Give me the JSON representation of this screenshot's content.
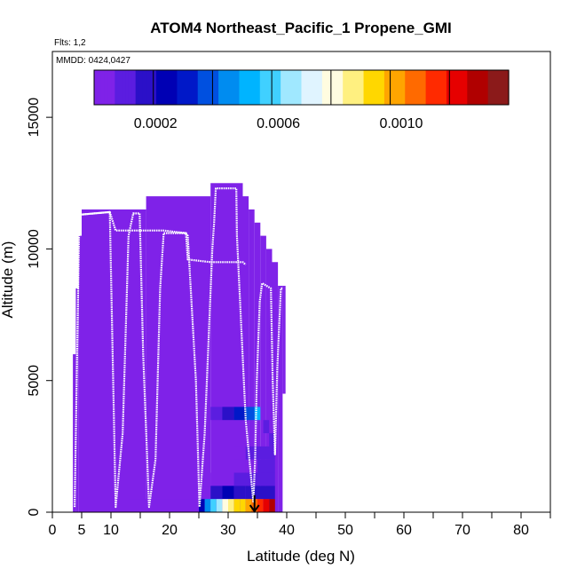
{
  "colors": {
    "background_fill": "#7f22e8",
    "track": "#ffffff",
    "arrow": "#000000",
    "palette": [
      "#7f22e8",
      "#5b1de0",
      "#2b10c8",
      "#0000b4",
      "#0018c8",
      "#0050e0",
      "#008cf0",
      "#00b4ff",
      "#40d0ff",
      "#a0e8ff",
      "#e0f4ff",
      "#fffce0",
      "#fff080",
      "#ffd700",
      "#ffa500",
      "#ff6a00",
      "#ff2a00",
      "#e60000",
      "#b00000",
      "#8b1a1a"
    ]
  },
  "chart_data": {
    "type": "heatmap",
    "title": "ATOM4 Northeast_Pacific_1 Propene_GMI",
    "flights_label": "Flts: 1,2",
    "dates_label": "MMDD: 0424,0427",
    "xlabel": "Latitude (deg N)",
    "ylabel": "Altitude (m)",
    "xlim": [
      0,
      85
    ],
    "ylim": [
      0,
      17500
    ],
    "x_ticks": [
      0,
      5,
      10,
      20,
      30,
      40,
      50,
      60,
      70,
      80
    ],
    "x_minor_ticks": [
      15,
      25,
      35,
      45,
      55,
      65,
      75,
      85
    ],
    "y_ticks": [
      0,
      5000,
      10000,
      15000
    ],
    "colorbar": {
      "min": 0.0,
      "max": 0.00135,
      "tick_values": [
        0.0002,
        0.0006,
        0.001
      ],
      "tick_labels": [
        "0.0002",
        "0.0006",
        "0.0010"
      ],
      "segments": 7
    },
    "columns": [
      {
        "x0": 3.5,
        "x1": 4.0,
        "y0": 0,
        "y1": 6000
      },
      {
        "x0": 4.0,
        "x1": 4.5,
        "y0": 0,
        "y1": 8500
      },
      {
        "x0": 4.5,
        "x1": 5.0,
        "y0": 0,
        "y1": 10500
      },
      {
        "x0": 5.0,
        "x1": 16.0,
        "y0": 0,
        "y1": 11500
      },
      {
        "x0": 16.0,
        "x1": 27.0,
        "y0": 0,
        "y1": 12000
      },
      {
        "x0": 27.0,
        "x1": 32.5,
        "y0": 0,
        "y1": 12500
      },
      {
        "x0": 32.5,
        "x1": 33.5,
        "y0": 0,
        "y1": 12000
      },
      {
        "x0": 33.5,
        "x1": 34.5,
        "y0": 0,
        "y1": 11500
      },
      {
        "x0": 34.5,
        "x1": 35.5,
        "y0": 0,
        "y1": 11000
      },
      {
        "x0": 35.5,
        "x1": 36.5,
        "y0": 0,
        "y1": 10500
      },
      {
        "x0": 36.5,
        "x1": 37.5,
        "y0": 0,
        "y1": 10000
      },
      {
        "x0": 37.5,
        "x1": 38.5,
        "y0": 0,
        "y1": 9500
      },
      {
        "x0": 38.5,
        "x1": 39.3,
        "y0": 0,
        "y1": 8600
      },
      {
        "x0": 39.3,
        "x1": 39.8,
        "y0": 4500,
        "y1": 8600
      }
    ],
    "high_value_cells": [
      {
        "x0": 27.0,
        "x1": 29.0,
        "y0": 3500,
        "y1": 4000,
        "value": 0.00012
      },
      {
        "x0": 29.0,
        "x1": 31.0,
        "y0": 3500,
        "y1": 4000,
        "value": 0.00018
      },
      {
        "x0": 31.0,
        "x1": 33.0,
        "y0": 3500,
        "y1": 4000,
        "value": 0.00028
      },
      {
        "x0": 33.0,
        "x1": 34.5,
        "y0": 3500,
        "y1": 4000,
        "value": 0.0004
      },
      {
        "x0": 34.5,
        "x1": 35.5,
        "y0": 3500,
        "y1": 4000,
        "value": 0.00048
      },
      {
        "x0": 36.0,
        "x1": 37.0,
        "y0": 3000,
        "y1": 3500,
        "value": 0.0001
      },
      {
        "x0": 37.0,
        "x1": 38.0,
        "y0": 2500,
        "y1": 3000,
        "value": 0.00012
      },
      {
        "x0": 31.0,
        "x1": 33.0,
        "y0": 2000,
        "y1": 2500,
        "value": 5e-05
      },
      {
        "x0": 33.0,
        "x1": 35.0,
        "y0": 2000,
        "y1": 2500,
        "value": 7e-05
      },
      {
        "x0": 35.0,
        "x1": 38.0,
        "y0": 2000,
        "y1": 2500,
        "value": 9e-05
      },
      {
        "x0": 31.0,
        "x1": 33.0,
        "y0": 1500,
        "y1": 2000,
        "value": 4e-05
      },
      {
        "x0": 33.0,
        "x1": 35.0,
        "y0": 1500,
        "y1": 2000,
        "value": 6e-05
      },
      {
        "x0": 35.0,
        "x1": 38.0,
        "y0": 1500,
        "y1": 2000,
        "value": 8e-05
      },
      {
        "x0": 25.0,
        "x1": 27.0,
        "y0": 1000,
        "y1": 1500,
        "value": 3e-05
      },
      {
        "x0": 27.0,
        "x1": 31.0,
        "y0": 1000,
        "y1": 1500,
        "value": 5e-05
      },
      {
        "x0": 31.0,
        "x1": 35.0,
        "y0": 1000,
        "y1": 1500,
        "value": 7e-05
      },
      {
        "x0": 35.0,
        "x1": 38.0,
        "y0": 1000,
        "y1": 1500,
        "value": 0.0001
      },
      {
        "x0": 25.0,
        "x1": 27.0,
        "y0": 500,
        "y1": 1000,
        "value": 5e-05
      },
      {
        "x0": 27.0,
        "x1": 29.0,
        "y0": 500,
        "y1": 1000,
        "value": 0.00018
      },
      {
        "x0": 29.0,
        "x1": 31.0,
        "y0": 500,
        "y1": 1000,
        "value": 0.00022
      },
      {
        "x0": 31.0,
        "x1": 33.0,
        "y0": 500,
        "y1": 1000,
        "value": 0.0002
      },
      {
        "x0": 33.0,
        "x1": 35.0,
        "y0": 500,
        "y1": 1000,
        "value": 0.00018
      },
      {
        "x0": 35.0,
        "x1": 38.0,
        "y0": 500,
        "y1": 1000,
        "value": 0.00016
      },
      {
        "x0": 13.0,
        "x1": 25.0,
        "y0": 0,
        "y1": 500,
        "value": 1e-05
      },
      {
        "x0": 25.0,
        "x1": 26.0,
        "y0": 0,
        "y1": 500,
        "value": 0.00026
      },
      {
        "x0": 26.0,
        "x1": 27.0,
        "y0": 0,
        "y1": 500,
        "value": 0.00045
      },
      {
        "x0": 27.0,
        "x1": 28.0,
        "y0": 0,
        "y1": 500,
        "value": 0.00058
      },
      {
        "x0": 28.0,
        "x1": 29.0,
        "y0": 0,
        "y1": 500,
        "value": 0.00066
      },
      {
        "x0": 29.0,
        "x1": 30.0,
        "y0": 0,
        "y1": 500,
        "value": 0.00075
      },
      {
        "x0": 30.0,
        "x1": 31.0,
        "y0": 0,
        "y1": 500,
        "value": 0.00082
      },
      {
        "x0": 31.0,
        "x1": 32.0,
        "y0": 0,
        "y1": 500,
        "value": 0.00088
      },
      {
        "x0": 32.0,
        "x1": 33.0,
        "y0": 0,
        "y1": 500,
        "value": 0.00094
      },
      {
        "x0": 33.0,
        "x1": 34.0,
        "y0": 0,
        "y1": 500,
        "value": 0.00099
      },
      {
        "x0": 34.0,
        "x1": 35.0,
        "y0": 0,
        "y1": 500,
        "value": 0.00103
      },
      {
        "x0": 35.0,
        "x1": 36.0,
        "y0": 0,
        "y1": 500,
        "value": 0.0011
      },
      {
        "x0": 36.0,
        "x1": 37.0,
        "y0": 0,
        "y1": 500,
        "value": 0.00118
      },
      {
        "x0": 37.0,
        "x1": 38.0,
        "y0": 0,
        "y1": 500,
        "value": 0.00126
      }
    ],
    "flight_track": [
      [
        3.8,
        200
      ],
      [
        4.6,
        11300
      ],
      [
        9.8,
        11400
      ],
      [
        10.8,
        200
      ],
      [
        12.0,
        3000
      ],
      [
        13.0,
        10500
      ],
      [
        13.8,
        11350
      ],
      [
        14.9,
        11350
      ],
      [
        15.5,
        6000
      ],
      [
        16.5,
        200
      ],
      [
        17.6,
        2000
      ],
      [
        18.4,
        8500
      ],
      [
        19.0,
        10600
      ],
      [
        22.8,
        10600
      ],
      [
        23.1,
        10500
      ],
      [
        24.5,
        5000
      ],
      [
        25.1,
        200
      ],
      [
        26.0,
        3000
      ],
      [
        27.3,
        10000
      ],
      [
        27.6,
        11000
      ],
      [
        27.9,
        12300
      ],
      [
        31.4,
        12300
      ],
      [
        31.5,
        10500
      ],
      [
        33.0,
        3500
      ],
      [
        34.3,
        400
      ],
      [
        34.6,
        2000
      ],
      [
        34.9,
        5000
      ],
      [
        35.4,
        8000
      ],
      [
        35.8,
        8700
      ],
      [
        37.3,
        8500
      ],
      [
        37.6,
        5000
      ],
      [
        38.0,
        2200
      ],
      [
        38.4,
        5500
      ],
      [
        39.0,
        8500
      ],
      [
        39.3,
        8500
      ]
    ],
    "flight_track_2": [
      [
        4.5,
        11300
      ],
      [
        9.8,
        11400
      ],
      [
        10.8,
        10700
      ],
      [
        19.0,
        10700
      ],
      [
        22.8,
        10600
      ],
      [
        23.1,
        9600
      ],
      [
        27.0,
        9500
      ],
      [
        32.5,
        9500
      ],
      [
        33.0,
        9400
      ]
    ],
    "arrow": {
      "x": 34.5,
      "y_from": 650,
      "y_to": 0
    }
  }
}
